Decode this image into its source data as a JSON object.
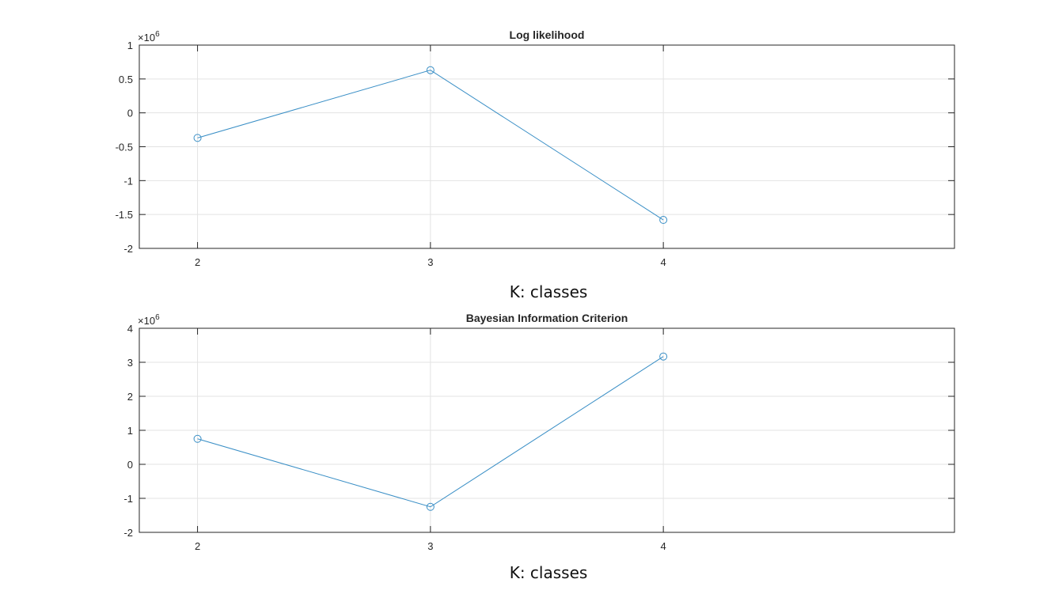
{
  "chart_data": [
    {
      "type": "line",
      "title": "Log likelihood",
      "xlabel": "K: classes",
      "ylabel": "",
      "exponent_base": "×10",
      "exponent_power": "6",
      "xlim": [
        1.75,
        5.25
      ],
      "ylim": [
        -2,
        1
      ],
      "x_ticks": [
        2,
        3,
        4
      ],
      "y_ticks": [
        1,
        0.5,
        0,
        -0.5,
        -1,
        -1.5,
        -2
      ],
      "x_tick_labels": [
        "2",
        "3",
        "4"
      ],
      "y_tick_labels": [
        "1",
        "0.5",
        "0",
        "-0.5",
        "-1",
        "-1.5",
        "-2"
      ],
      "grid": true,
      "color": "#3a8fc6",
      "series": [
        {
          "x": [
            2,
            3,
            4
          ],
          "y": [
            -0.37,
            0.63,
            -1.58
          ]
        }
      ]
    },
    {
      "type": "line",
      "title": "Bayesian Information Criterion",
      "xlabel": "K: classes",
      "ylabel": "",
      "exponent_base": "×10",
      "exponent_power": "6",
      "xlim": [
        1.75,
        5.25
      ],
      "ylim": [
        -2,
        4
      ],
      "x_ticks": [
        2,
        3,
        4
      ],
      "y_ticks": [
        4,
        3,
        2,
        1,
        0,
        -1,
        -2
      ],
      "x_tick_labels": [
        "2",
        "3",
        "4"
      ],
      "y_tick_labels": [
        "4",
        "3",
        "2",
        "1",
        "0",
        "-1",
        "-2"
      ],
      "grid": true,
      "color": "#3a8fc6",
      "series": [
        {
          "x": [
            2,
            3,
            4
          ],
          "y": [
            0.75,
            -1.25,
            3.17
          ]
        }
      ]
    }
  ]
}
